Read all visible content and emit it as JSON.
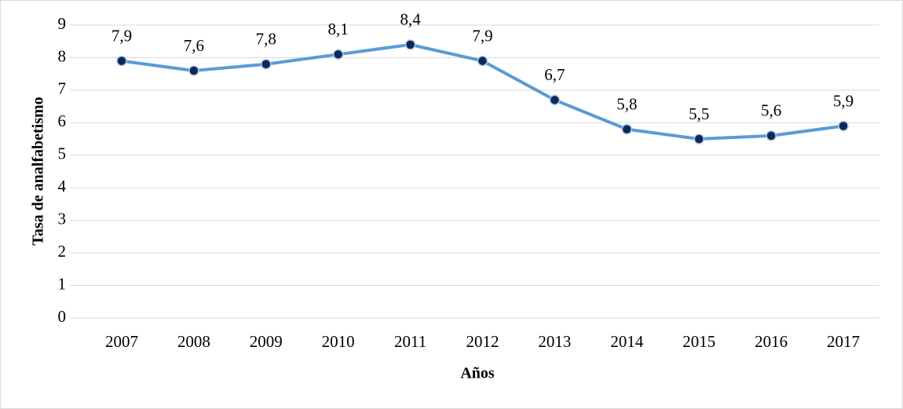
{
  "chart_data": {
    "type": "line",
    "categories": [
      "2007",
      "2008",
      "2009",
      "2010",
      "2011",
      "2012",
      "2013",
      "2014",
      "2015",
      "2016",
      "2017"
    ],
    "series": [
      {
        "color": "#5b9bd5",
        "values": [
          7.9,
          7.6,
          7.8,
          8.1,
          8.4,
          7.9,
          6.7,
          5.8,
          5.5,
          5.6,
          5.9
        ],
        "value_labels": [
          "7,9",
          "7,6",
          "7,8",
          "8,1",
          "8,4",
          "7,9",
          "6,7",
          "5,8",
          "5,5",
          "5,6",
          "5,9"
        ]
      }
    ],
    "marker_color": "#0b2a5b",
    "ylim": [
      0,
      9
    ],
    "yticks": [
      0,
      1,
      2,
      3,
      4,
      5,
      6,
      7,
      8,
      9
    ],
    "grid": true,
    "xlabel": "Años",
    "ylabel": "Tasa de analfabetismo"
  }
}
